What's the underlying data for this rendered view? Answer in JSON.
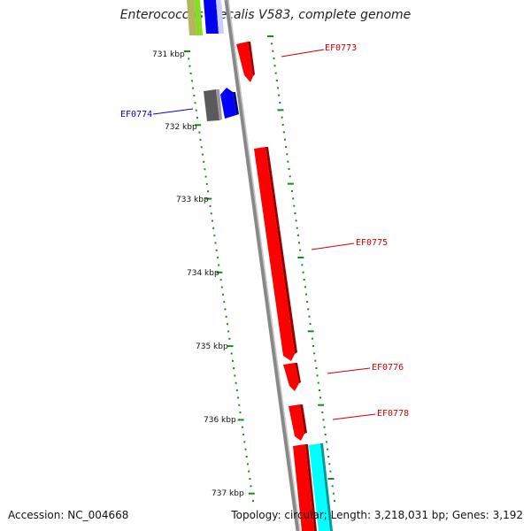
{
  "header": {
    "title": "Enterococcus faecalis V583, complete genome"
  },
  "footer": {
    "accession": "Accession: NC_004668",
    "stats": "Topology: circular; Length: 3,218,031 bp; Genes: 3,192"
  },
  "scale_ticks": [
    "731 kbp",
    "732 kbp",
    "733 kbp",
    "734 kbp",
    "735 kbp",
    "736 kbp",
    "737 kbp"
  ],
  "gene_labels": [
    {
      "id": "EF0773",
      "color": "#cc0000"
    },
    {
      "id": "EF0774",
      "color": "#0000cc"
    },
    {
      "id": "EF0775",
      "color": "#cc0000"
    },
    {
      "id": "EF0776",
      "color": "#cc0000"
    },
    {
      "id": "EF0778",
      "color": "#cc0000"
    }
  ],
  "colors": {
    "forward_gene": "#ff0000",
    "reverse_gene": "#0000ff",
    "backbone": "#888888",
    "tick": "#1a8a1a",
    "other_gene_gray": "#707070",
    "other_gene_cyan": "#00ffff"
  }
}
